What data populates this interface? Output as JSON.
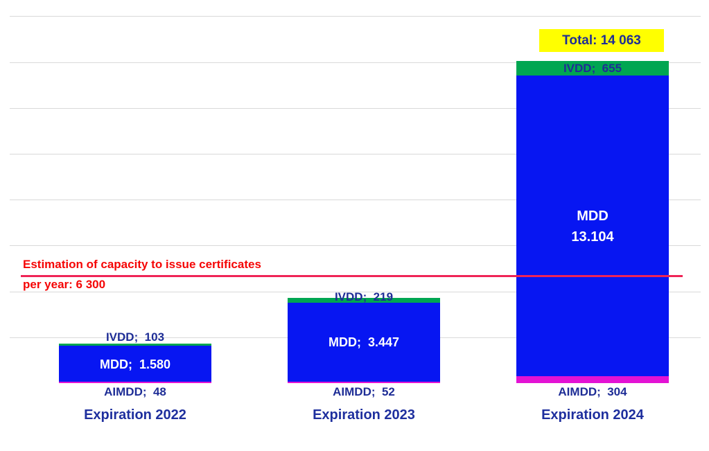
{
  "chart_data": {
    "type": "bar",
    "stacked": true,
    "title": "",
    "categories": [
      "Expiration 2022",
      "Expiration 2023",
      "Expiration 2024"
    ],
    "series": [
      {
        "name": "AIMDD",
        "color": "#e312d4",
        "values": [
          48,
          52,
          304
        ]
      },
      {
        "name": "MDD",
        "color": "#0716f2",
        "values": [
          1580,
          3447,
          13104
        ]
      },
      {
        "name": "IVDD",
        "color": "#00a651",
        "values": [
          103,
          219,
          655
        ]
      }
    ],
    "bar_totals": [
      1731,
      3718,
      14063
    ],
    "ylim": [
      0,
      16000
    ],
    "y_step": 2000,
    "grid": true,
    "legend": false,
    "capacity_line": {
      "value": 6300,
      "color": "#ef2456",
      "label": "Estimation of capacity to issue certificates per year: 6 300"
    },
    "total_annotation": {
      "category": "Expiration 2024",
      "value": 14063,
      "label": "Total: 14 063"
    }
  },
  "bars": [
    {
      "ivdd_label": "IVDD;  103",
      "mdd_label": "MDD;  1.580",
      "aimdd_label": "AIMDD;  48",
      "category": "Expiration 2022"
    },
    {
      "ivdd_label": "IVDD;  219",
      "mdd_label": "MDD;  3.447",
      "aimdd_label": "AIMDD;  52",
      "category": "Expiration 2023"
    },
    {
      "ivdd_label": "IVDD;  655",
      "mdd_label_line1": "MDD",
      "mdd_label_line2": "13.104",
      "aimdd_label": "AIMDD;  304",
      "category": "Expiration 2024",
      "total_label": "Total: 14 063"
    }
  ],
  "capacity": {
    "line1": "Estimation of capacity to issue certificates",
    "line2": "per year: 6 300"
  },
  "colors": {
    "mdd_blue": "#0716f2",
    "ivdd_green": "#00a651",
    "aimdd_magenta": "#e312d4",
    "label_navy": "#1e2d96",
    "category_navy": "#1e2f9e",
    "capacity_red_line": "#ef2456",
    "capacity_red_text": "#f50505",
    "total_highlight_yellow": "#ffff00",
    "gridline_gray": "#d9d9d9",
    "background": "#ffffff"
  }
}
